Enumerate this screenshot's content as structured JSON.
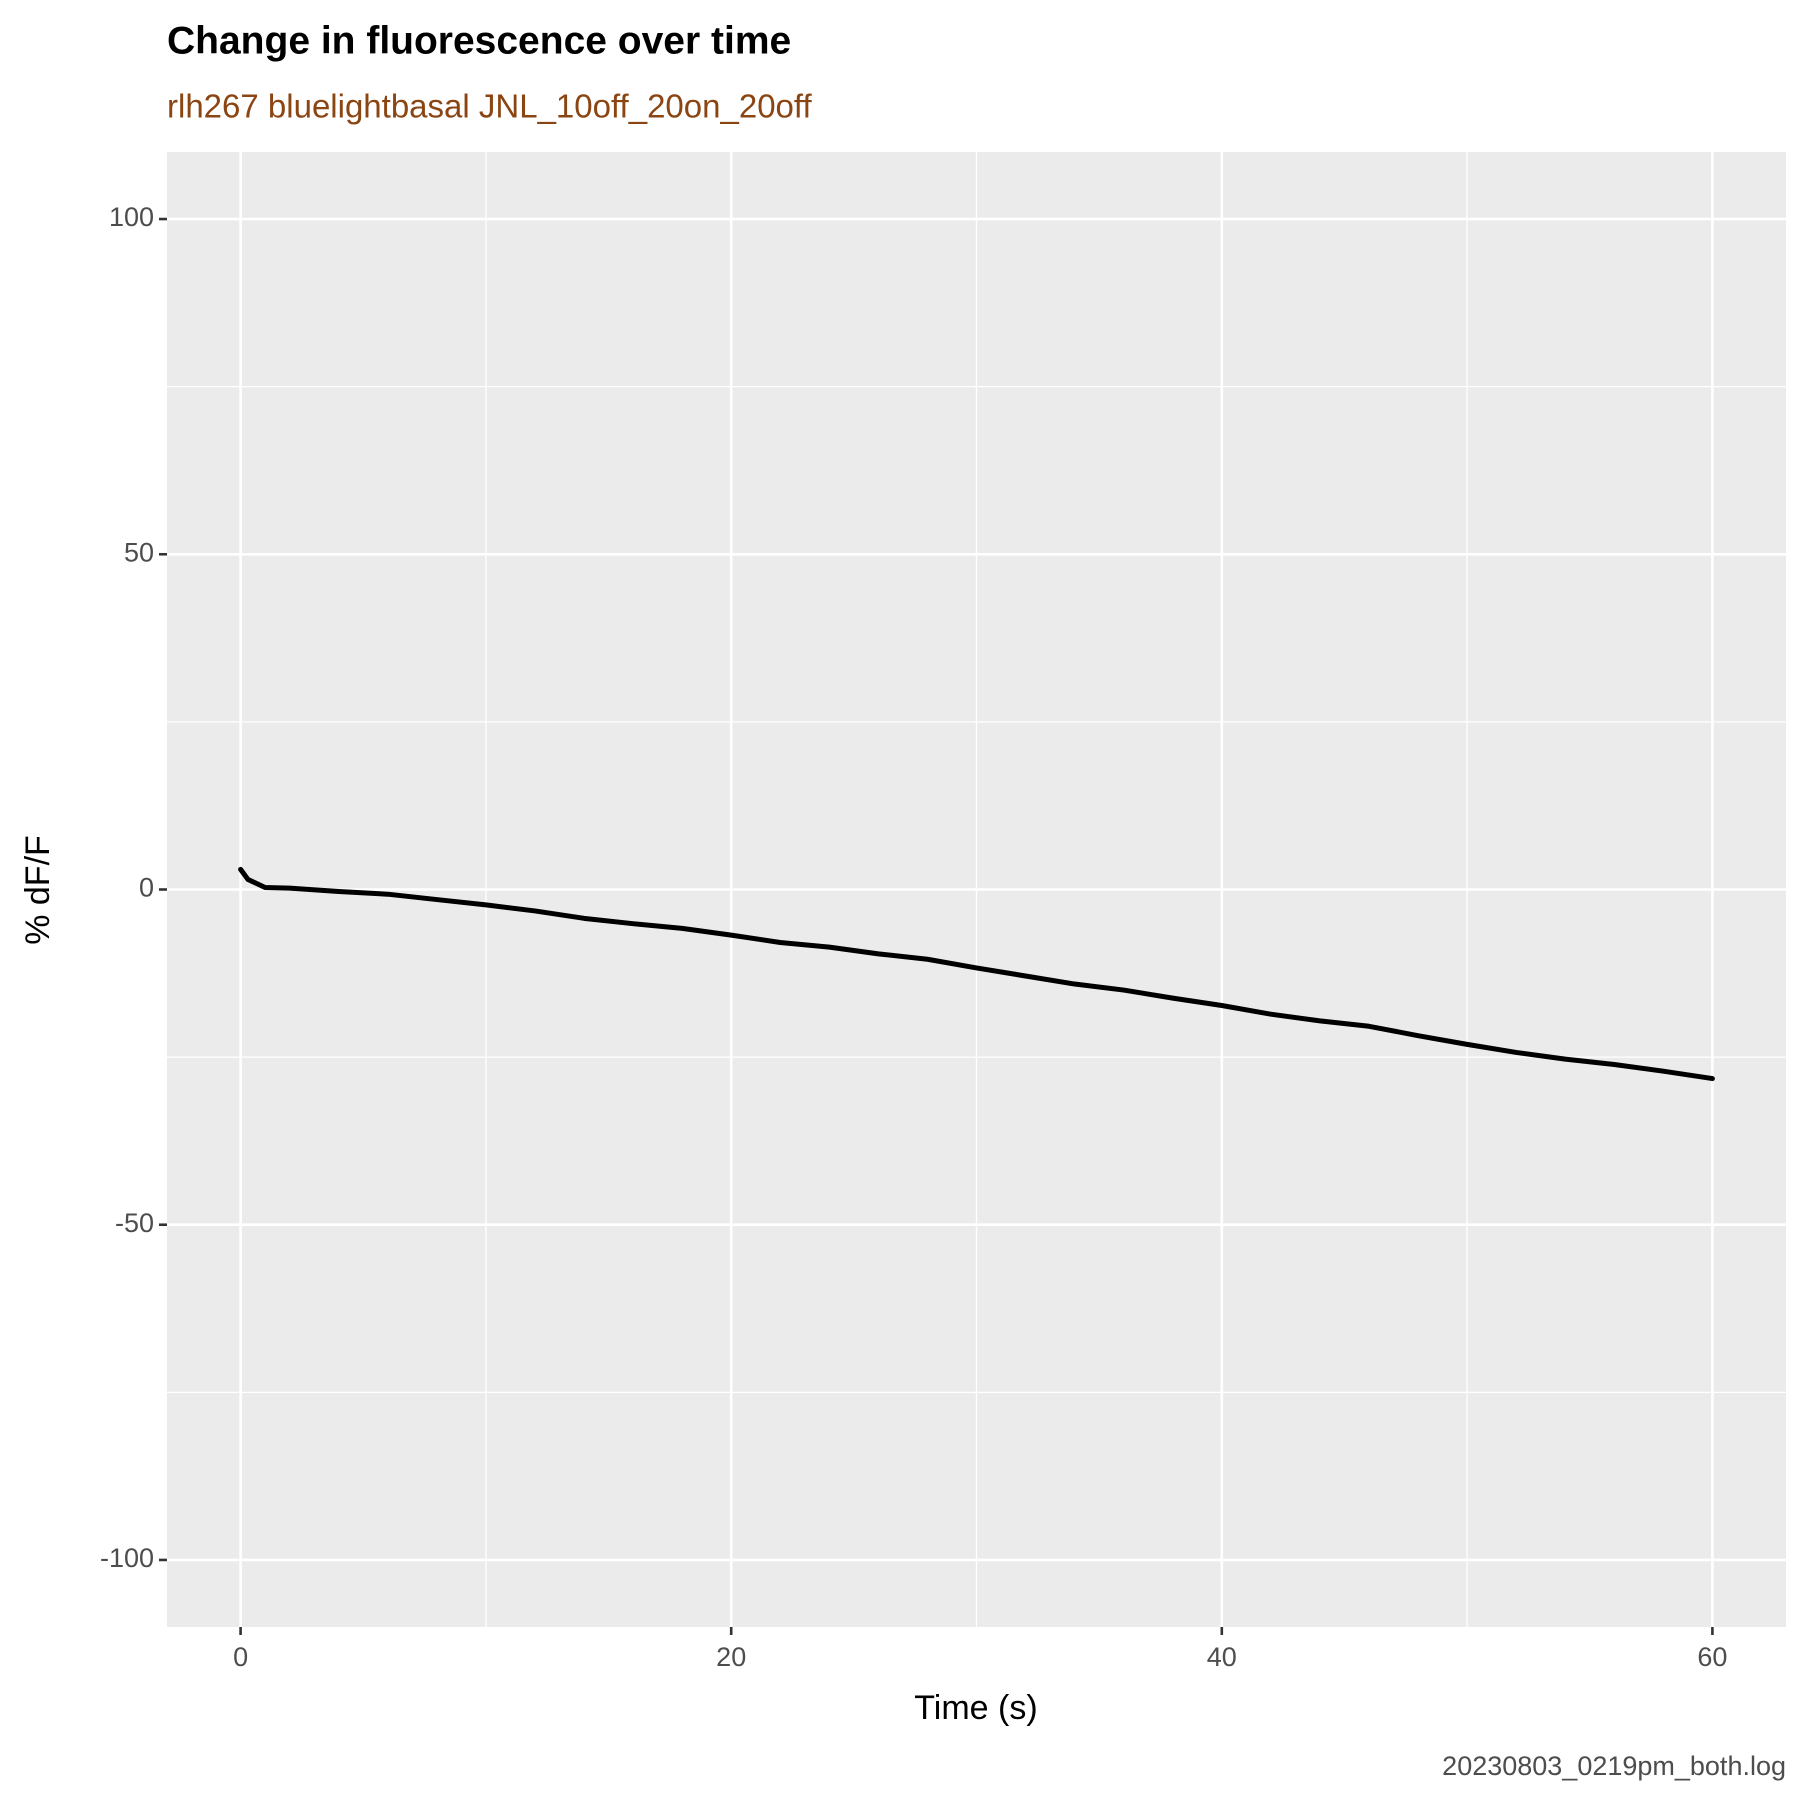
{
  "chart_data": {
    "type": "line",
    "title": "Change in fluorescence over time",
    "subtitle": "rlh267 bluelightbasal JNL_10off_20on_20off",
    "caption": "20230803_0219pm_both.log",
    "x_label": "Time (s)",
    "y_label": "% dF/F",
    "x": [
      0,
      0.3,
      1,
      2,
      4,
      6,
      8,
      10,
      12,
      14,
      16,
      18,
      20,
      22,
      24,
      26,
      28,
      30,
      32,
      34,
      36,
      38,
      40,
      42,
      44,
      46,
      48,
      50,
      52,
      54,
      56,
      58,
      60
    ],
    "series": [
      {
        "color": "#000000",
        "values": [
          3,
          1.5,
          0.3,
          0.2,
          -0.3,
          -0.7,
          -1.5,
          -2.3,
          -3.2,
          -4.3,
          -5.1,
          -5.8,
          -6.8,
          -7.9,
          -8.6,
          -9.6,
          -10.4,
          -11.7,
          -12.9,
          -14.1,
          -15.0,
          -16.2,
          -17.3,
          -18.6,
          -19.6,
          -20.4,
          -21.8,
          -23.1,
          -24.3,
          -25.3,
          -26.1,
          -27.1,
          -28.2
        ]
      }
    ],
    "xlim": [
      -3,
      63
    ],
    "xticks": [
      0,
      20,
      40,
      60
    ],
    "ylim": [
      -110,
      110
    ],
    "yticks": [
      -100,
      -50,
      0,
      50,
      100
    ],
    "grid": true
  }
}
